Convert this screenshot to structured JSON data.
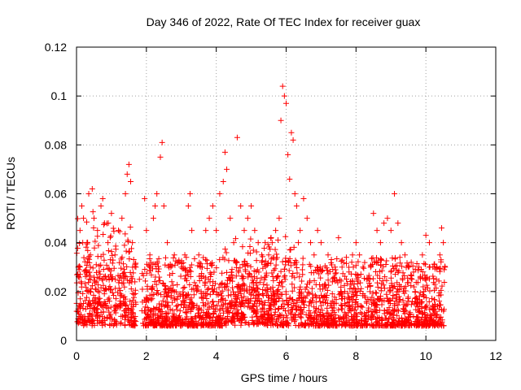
{
  "chart_data": {
    "type": "scatter",
    "title": "Day 346 of 2022, Rate Of TEC Index for receiver guax",
    "xlabel": "GPS time / hours",
    "ylabel": "ROTI / TECUs",
    "xlim": [
      0,
      12
    ],
    "ylim": [
      0,
      0.12
    ],
    "xticks": [
      "0",
      "2",
      "4",
      "6",
      "8",
      "10",
      "12"
    ],
    "xtick_values": [
      0,
      2,
      4,
      6,
      8,
      10,
      12
    ],
    "yticks": [
      "0",
      "0.02",
      "0.04",
      "0.06",
      "0.08",
      "0.1",
      "0.12"
    ],
    "ytick_values": [
      0,
      0.02,
      0.04,
      0.06,
      0.08,
      0.1,
      0.12
    ],
    "grid": true,
    "marker": "+",
    "color": "#ff0000",
    "series": [
      {
        "values_summary": "dense ROTI values between ~0.003 and ~0.06 TECUs from 0 to 10.5 h, with peaks near 0.072 at 1.5 h, 0.081 at 2.45 h, 0.083 at 4.6 h, 0.104 at 5.95 h",
        "points": [
          [
            0.05,
            0.03
          ],
          [
            0.1,
            0.045
          ],
          [
            0.15,
            0.055
          ],
          [
            0.2,
            0.05
          ],
          [
            0.3,
            0.04
          ],
          [
            0.35,
            0.06
          ],
          [
            0.4,
            0.035
          ],
          [
            0.45,
            0.062
          ],
          [
            0.5,
            0.05
          ],
          [
            0.6,
            0.045
          ],
          [
            0.7,
            0.055
          ],
          [
            0.75,
            0.058
          ],
          [
            0.8,
            0.048
          ],
          [
            0.9,
            0.04
          ],
          [
            1.0,
            0.052
          ],
          [
            1.1,
            0.035
          ],
          [
            1.2,
            0.045
          ],
          [
            1.3,
            0.05
          ],
          [
            1.4,
            0.06
          ],
          [
            1.45,
            0.068
          ],
          [
            1.5,
            0.072
          ],
          [
            1.55,
            0.065
          ],
          [
            1.6,
            0.04
          ],
          [
            1.7,
            0.03
          ],
          [
            1.8,
            0.025
          ],
          [
            1.95,
            0.058
          ],
          [
            2.0,
            0.045
          ],
          [
            2.1,
            0.035
          ],
          [
            2.2,
            0.05
          ],
          [
            2.25,
            0.055
          ],
          [
            2.3,
            0.06
          ],
          [
            2.4,
            0.075
          ],
          [
            2.45,
            0.081
          ],
          [
            2.5,
            0.055
          ],
          [
            2.6,
            0.04
          ],
          [
            2.7,
            0.03
          ],
          [
            2.8,
            0.035
          ],
          [
            2.9,
            0.032
          ],
          [
            3.0,
            0.03
          ],
          [
            3.1,
            0.035
          ],
          [
            3.2,
            0.055
          ],
          [
            3.25,
            0.06
          ],
          [
            3.3,
            0.045
          ],
          [
            3.5,
            0.035
          ],
          [
            3.6,
            0.03
          ],
          [
            3.7,
            0.045
          ],
          [
            3.8,
            0.05
          ],
          [
            3.9,
            0.055
          ],
          [
            4.0,
            0.045
          ],
          [
            4.1,
            0.06
          ],
          [
            4.2,
            0.065
          ],
          [
            4.25,
            0.077
          ],
          [
            4.3,
            0.07
          ],
          [
            4.4,
            0.05
          ],
          [
            4.5,
            0.04
          ],
          [
            4.6,
            0.083
          ],
          [
            4.7,
            0.055
          ],
          [
            4.8,
            0.045
          ],
          [
            4.9,
            0.05
          ],
          [
            5.0,
            0.055
          ],
          [
            5.1,
            0.045
          ],
          [
            5.2,
            0.04
          ],
          [
            5.3,
            0.035
          ],
          [
            5.4,
            0.04
          ],
          [
            5.5,
            0.035
          ],
          [
            5.6,
            0.04
          ],
          [
            5.7,
            0.045
          ],
          [
            5.8,
            0.05
          ],
          [
            5.85,
            0.09
          ],
          [
            5.9,
            0.104
          ],
          [
            5.95,
            0.1
          ],
          [
            6.0,
            0.097
          ],
          [
            6.05,
            0.076
          ],
          [
            6.1,
            0.066
          ],
          [
            6.15,
            0.085
          ],
          [
            6.2,
            0.082
          ],
          [
            6.25,
            0.06
          ],
          [
            6.3,
            0.055
          ],
          [
            6.4,
            0.045
          ],
          [
            6.5,
            0.058
          ],
          [
            6.6,
            0.05
          ],
          [
            6.7,
            0.04
          ],
          [
            6.8,
            0.035
          ],
          [
            6.9,
            0.045
          ],
          [
            7.0,
            0.04
          ],
          [
            7.2,
            0.035
          ],
          [
            7.4,
            0.03
          ],
          [
            7.5,
            0.042
          ],
          [
            7.6,
            0.03
          ],
          [
            7.8,
            0.028
          ],
          [
            7.9,
            0.035
          ],
          [
            8.0,
            0.04
          ],
          [
            8.1,
            0.035
          ],
          [
            8.2,
            0.03
          ],
          [
            8.3,
            0.025
          ],
          [
            8.4,
            0.02
          ],
          [
            8.5,
            0.052
          ],
          [
            8.6,
            0.045
          ],
          [
            8.7,
            0.04
          ],
          [
            8.8,
            0.048
          ],
          [
            8.9,
            0.05
          ],
          [
            9.0,
            0.045
          ],
          [
            9.1,
            0.06
          ],
          [
            9.2,
            0.048
          ],
          [
            9.3,
            0.04
          ],
          [
            9.4,
            0.035
          ],
          [
            9.5,
            0.03
          ],
          [
            9.6,
            0.025
          ],
          [
            9.7,
            0.02
          ],
          [
            9.8,
            0.03
          ],
          [
            9.9,
            0.035
          ],
          [
            10.0,
            0.043
          ],
          [
            10.1,
            0.04
          ],
          [
            10.2,
            0.03
          ],
          [
            10.3,
            0.025
          ],
          [
            10.4,
            0.035
          ],
          [
            10.45,
            0.046
          ],
          [
            10.5,
            0.04
          ],
          [
            10.55,
            0.03
          ]
        ]
      }
    ]
  }
}
